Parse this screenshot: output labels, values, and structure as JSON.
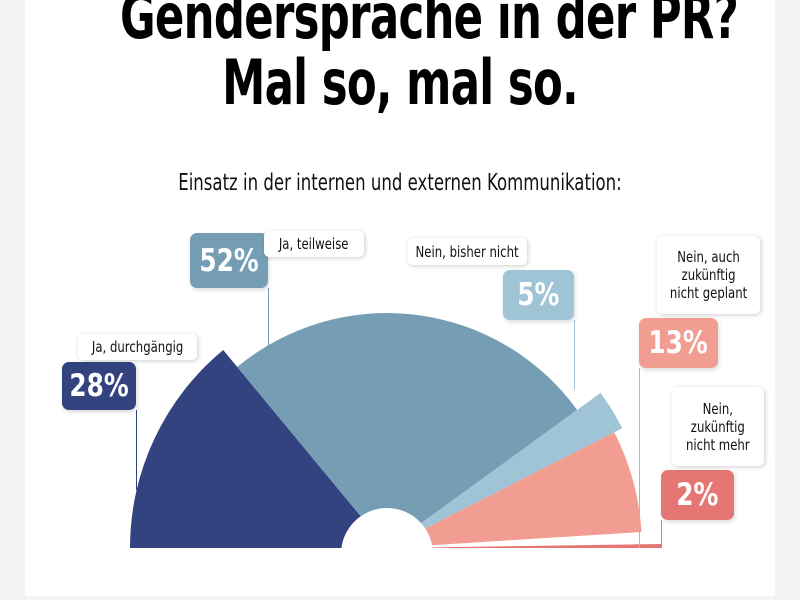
{
  "title_line1": "Gendersprache in der PR?",
  "title_line2": "Mal so, mal so.",
  "chart_data": {
    "type": "pie",
    "subtitle": "Einsatz in der internen und externen Kommunikation:",
    "slices": [
      {
        "label": "Ja, durchgängig",
        "value": 28,
        "value_label": "28%",
        "color": "#33437f"
      },
      {
        "label": "Ja, teilweise",
        "value": 52,
        "value_label": "52%",
        "color": "#759eb5"
      },
      {
        "label": "Nein, bisher nicht",
        "value": 5,
        "value_label": "5%",
        "color": "#9ec4d6"
      },
      {
        "label": "Nein, auch\nzukünftig\nnicht geplant",
        "value": 13,
        "value_label": "13%",
        "color": "#f29d91"
      },
      {
        "label": "Nein,\nzukünftig\nnicht mehr",
        "value": 2,
        "value_label": "2%",
        "color": "#e57673"
      }
    ]
  }
}
